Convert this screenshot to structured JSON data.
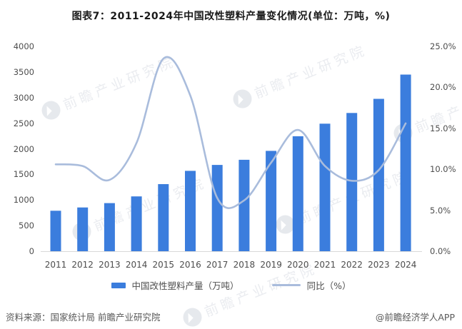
{
  "title": "图表7：2011-2024年中国改性塑料产量变化情况(单位：万吨，%)",
  "watermark_text": "前瞻产业研究院",
  "chart_data": {
    "type": "bar",
    "title": "图表7：2011-2024年中国改性塑料产量变化情况(单位：万吨，%)",
    "categories": [
      "2011",
      "2012",
      "2013",
      "2014",
      "2015",
      "2016",
      "2017",
      "2018",
      "2019",
      "2020",
      "2021",
      "2022",
      "2023",
      "2024"
    ],
    "series": [
      {
        "name": "中国改性塑料产量（万吨）",
        "type": "bar",
        "axis": "left",
        "color": "#3b7ddd",
        "values": [
          790,
          855,
          940,
          1070,
          1310,
          1570,
          1685,
          1785,
          1960,
          2245,
          2490,
          2700,
          2975,
          3450
        ]
      },
      {
        "name": "同比（%）",
        "type": "line",
        "axis": "right",
        "color": "#a9bcdc",
        "values": [
          10.6,
          10.4,
          8.7,
          13.2,
          23.5,
          19.0,
          6.5,
          6.2,
          10.8,
          14.8,
          10.4,
          8.6,
          9.9,
          15.6
        ]
      }
    ],
    "left_axis": {
      "min": 0,
      "max": 4000,
      "step": 500,
      "tick_labels_top_to_bottom": [
        "4000",
        "3500",
        "3000",
        "2500",
        "2000",
        "1500",
        "1000",
        "500",
        "0"
      ]
    },
    "right_axis": {
      "min": 0,
      "max": 25,
      "step": 5,
      "tick_labels_top_to_bottom": [
        "25.0%",
        "20.0%",
        "15.0%",
        "10.0%",
        "5.0%",
        "0.0%"
      ]
    },
    "grid": "off",
    "legend_position": "bottom"
  },
  "footer": {
    "source": "资料来源：国家统计局 前瞻产业研究院",
    "credit": "@前瞻经济学人APP"
  }
}
